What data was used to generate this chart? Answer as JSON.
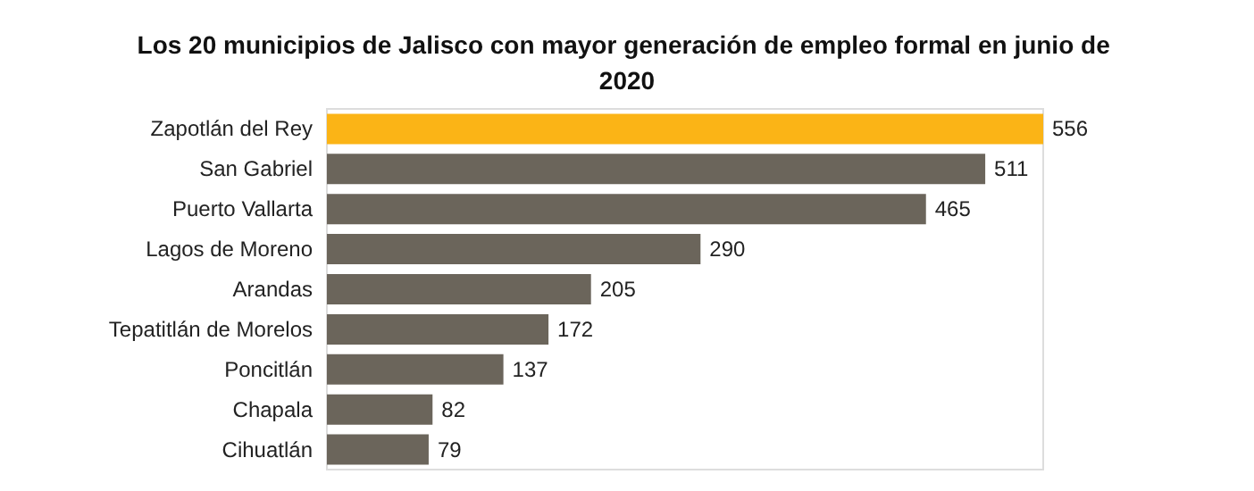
{
  "chart_data": {
    "type": "bar",
    "orientation": "horizontal",
    "title": "Los 20 municipios de Jalisco con mayor generación de empleo formal en junio de 2020",
    "categories": [
      "Zapotlán del Rey",
      "San Gabriel",
      "Puerto Vallarta",
      "Lagos de Moreno",
      "Arandas",
      "Tepatitlán de Morelos",
      "Poncitlán",
      "Chapala",
      "Cihuatlán"
    ],
    "values": [
      556,
      511,
      465,
      290,
      205,
      172,
      137,
      82,
      79
    ],
    "colors": [
      "#fbb416",
      "#6b655b",
      "#6b655b",
      "#6b655b",
      "#6b655b",
      "#6b655b",
      "#6b655b",
      "#6b655b",
      "#6b655b"
    ],
    "data_labels": true
  }
}
